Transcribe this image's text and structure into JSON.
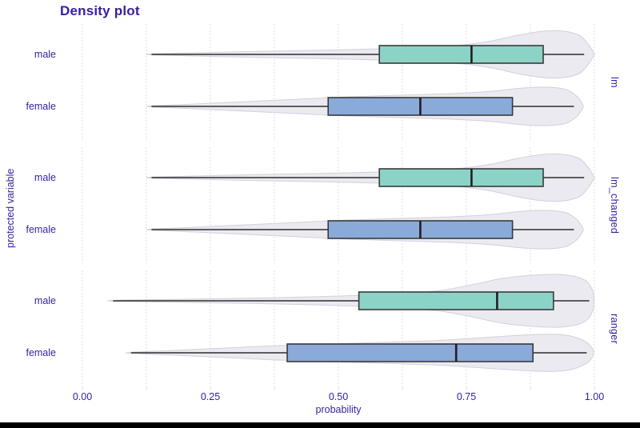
{
  "window": {
    "bottom_bar_color": "#000000",
    "background": "#ffffff"
  },
  "chart_data": {
    "type": "violin-box-horizontal-faceted",
    "title": "Density plot",
    "xlabel": "probability",
    "ylabel": "protected variable",
    "xlim": [
      0,
      1
    ],
    "grid_on": true,
    "grid_step": 0.125,
    "legend_position": "none",
    "x_ticks": [
      {
        "value": 0.0,
        "label": "0.00"
      },
      {
        "value": 0.25,
        "label": "0.25"
      },
      {
        "value": 0.5,
        "label": "0.50"
      },
      {
        "value": 0.75,
        "label": "0.75"
      },
      {
        "value": 1.0,
        "label": "1.00"
      }
    ],
    "categories": [
      "male",
      "female"
    ],
    "colors": {
      "accent_text": "#371ea3",
      "male_fill": "#8cd3c7",
      "female_fill": "#8aaad9",
      "violin_fill": "#e9e8ef",
      "violin_stroke": "#d2d1dc",
      "grid": "#dedde8",
      "box_stroke": "#3a3a3a",
      "whisker": "#474747",
      "median": "#1f1f1f"
    },
    "facets": [
      {
        "label": "lm",
        "rows": [
          {
            "group": "male",
            "fill_key": "male_fill",
            "box": {
              "whisker_min": 0.135,
              "q1": 0.58,
              "median": 0.76,
              "q3": 0.9,
              "whisker_max": 0.98
            },
            "violin": [
              [
                0.135,
                0.6
              ],
              [
                0.22,
                2
              ],
              [
                0.32,
                3.5
              ],
              [
                0.45,
                5
              ],
              [
                0.55,
                6.5
              ],
              [
                0.65,
                8.5
              ],
              [
                0.73,
                11
              ],
              [
                0.8,
                17
              ],
              [
                0.85,
                24
              ],
              [
                0.9,
                29
              ],
              [
                0.94,
                29
              ],
              [
                0.97,
                24
              ],
              [
                0.985,
                15
              ],
              [
                0.995,
                6
              ],
              [
                0.999,
                1
              ]
            ]
          },
          {
            "group": "female",
            "fill_key": "female_fill",
            "box": {
              "whisker_min": 0.135,
              "q1": 0.48,
              "median": 0.66,
              "q3": 0.84,
              "whisker_max": 0.96
            },
            "violin": [
              [
                0.135,
                0.6
              ],
              [
                0.22,
                3
              ],
              [
                0.32,
                6
              ],
              [
                0.42,
                9
              ],
              [
                0.52,
                12
              ],
              [
                0.62,
                14
              ],
              [
                0.72,
                16
              ],
              [
                0.8,
                19
              ],
              [
                0.86,
                23
              ],
              [
                0.91,
                24
              ],
              [
                0.945,
                21
              ],
              [
                0.965,
                13
              ],
              [
                0.975,
                5
              ],
              [
                0.978,
                1
              ]
            ]
          }
        ]
      },
      {
        "label": "lm_changed",
        "rows": [
          {
            "group": "male",
            "fill_key": "male_fill",
            "box": {
              "whisker_min": 0.135,
              "q1": 0.58,
              "median": 0.76,
              "q3": 0.9,
              "whisker_max": 0.98
            },
            "violin": [
              [
                0.135,
                0.6
              ],
              [
                0.22,
                2
              ],
              [
                0.32,
                3.5
              ],
              [
                0.45,
                5
              ],
              [
                0.55,
                6.5
              ],
              [
                0.65,
                8.5
              ],
              [
                0.73,
                11
              ],
              [
                0.8,
                17
              ],
              [
                0.85,
                24
              ],
              [
                0.9,
                29
              ],
              [
                0.94,
                29
              ],
              [
                0.97,
                24
              ],
              [
                0.985,
                15
              ],
              [
                0.995,
                6
              ],
              [
                0.999,
                1
              ]
            ]
          },
          {
            "group": "female",
            "fill_key": "female_fill",
            "box": {
              "whisker_min": 0.135,
              "q1": 0.48,
              "median": 0.66,
              "q3": 0.84,
              "whisker_max": 0.96
            },
            "violin": [
              [
                0.135,
                0.6
              ],
              [
                0.22,
                3
              ],
              [
                0.32,
                6
              ],
              [
                0.42,
                9
              ],
              [
                0.52,
                12
              ],
              [
                0.62,
                14
              ],
              [
                0.72,
                16
              ],
              [
                0.8,
                19
              ],
              [
                0.86,
                23
              ],
              [
                0.91,
                24
              ],
              [
                0.945,
                21
              ],
              [
                0.965,
                13
              ],
              [
                0.975,
                5
              ],
              [
                0.978,
                1
              ]
            ]
          }
        ]
      },
      {
        "label": "ranger",
        "rows": [
          {
            "group": "male",
            "fill_key": "male_fill",
            "box": {
              "whisker_min": 0.06,
              "q1": 0.54,
              "median": 0.81,
              "q3": 0.92,
              "whisker_max": 0.99
            },
            "violin": [
              [
                0.06,
                0.6
              ],
              [
                0.15,
                1.5
              ],
              [
                0.25,
                2.5
              ],
              [
                0.35,
                3.5
              ],
              [
                0.45,
                5
              ],
              [
                0.55,
                7
              ],
              [
                0.63,
                9
              ],
              [
                0.7,
                13
              ],
              [
                0.76,
                20
              ],
              [
                0.82,
                28
              ],
              [
                0.88,
                32
              ],
              [
                0.93,
                33
              ],
              [
                0.965,
                30
              ],
              [
                0.985,
                24
              ],
              [
                0.997,
                12
              ],
              [
                0.999,
                2
              ]
            ]
          },
          {
            "group": "female",
            "fill_key": "female_fill",
            "box": {
              "whisker_min": 0.095,
              "q1": 0.4,
              "median": 0.73,
              "q3": 0.88,
              "whisker_max": 0.985
            },
            "violin": [
              [
                0.095,
                0.6
              ],
              [
                0.18,
                3
              ],
              [
                0.28,
                6
              ],
              [
                0.38,
                9
              ],
              [
                0.48,
                11
              ],
              [
                0.58,
                13
              ],
              [
                0.68,
                15
              ],
              [
                0.76,
                18
              ],
              [
                0.83,
                21
              ],
              [
                0.89,
                23
              ],
              [
                0.93,
                23
              ],
              [
                0.96,
                20
              ],
              [
                0.985,
                13
              ],
              [
                0.997,
                4
              ]
            ]
          }
        ]
      }
    ]
  }
}
